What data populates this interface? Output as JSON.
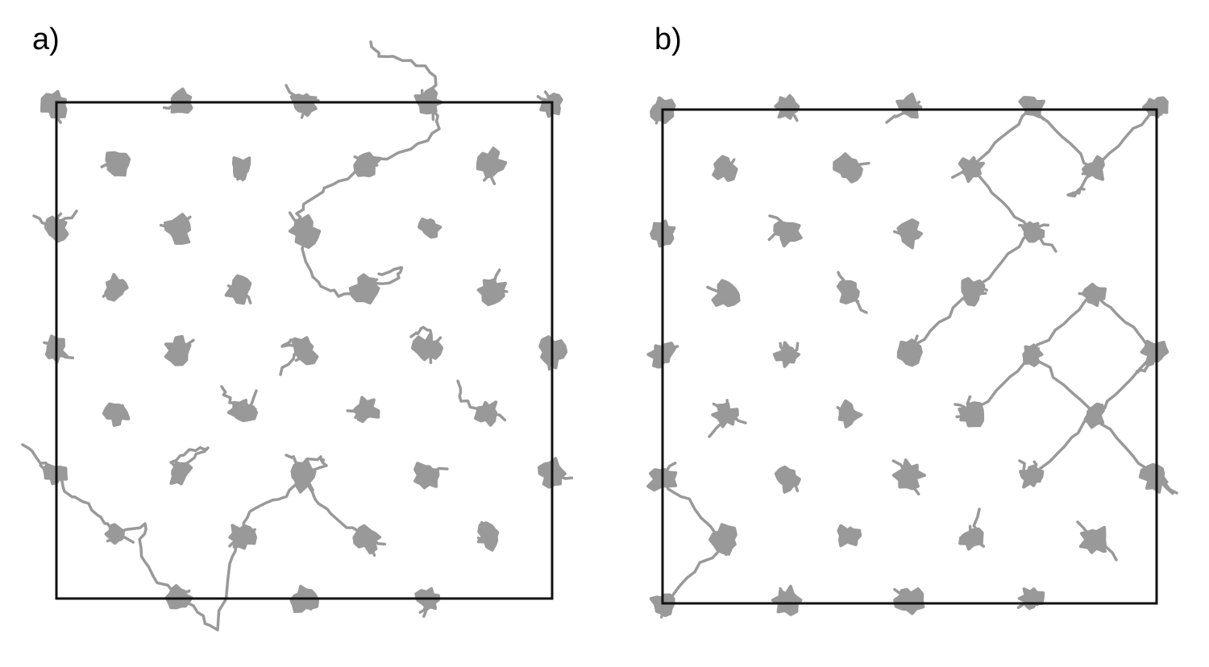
{
  "panels": [
    {
      "id": "a",
      "label": "a)"
    },
    {
      "id": "b",
      "label": "b)"
    }
  ],
  "colors": {
    "trajectory": "#999999",
    "box": "#111111",
    "background": "#ffffff"
  }
}
